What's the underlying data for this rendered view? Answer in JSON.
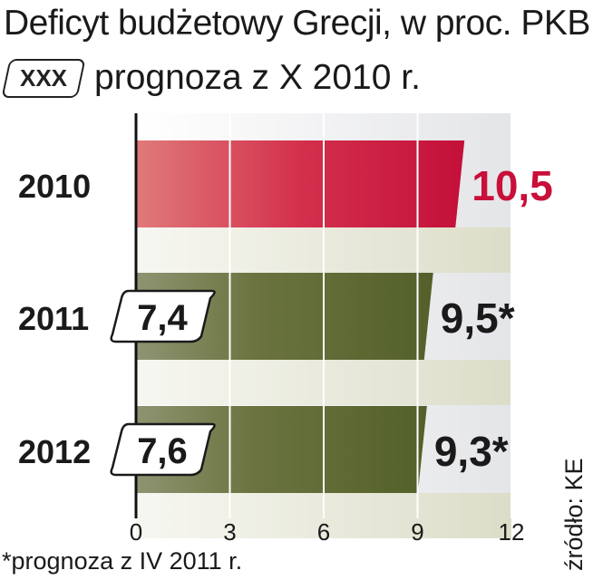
{
  "header": {
    "title": "Deficyt budżetowy Grecji, w proc. PKB",
    "legend_badge": "XXX",
    "legend_text": "prognoza z X 2010 r."
  },
  "footer": {
    "footnote": "*prognoza z IV 2011 r.",
    "source": "źródło: KE"
  },
  "colors": {
    "actual": "#c81e3c",
    "forecast": "#5a6a2a",
    "label_actual": "#c8103a",
    "label_forecast": "#1a1a1a"
  },
  "chart_data": {
    "type": "bar",
    "orientation": "horizontal",
    "title": "Deficyt budżetowy Grecji, w proc. PKB",
    "categories": [
      "2010",
      "2011",
      "2012"
    ],
    "values": [
      10.5,
      9.5,
      9.3
    ],
    "value_labels": [
      "10,5",
      "9,5*",
      "9,3*"
    ],
    "forecast_values": [
      null,
      7.4,
      7.6
    ],
    "forecast_labels": [
      null,
      "7,4",
      "7,6"
    ],
    "xlim": [
      0,
      12
    ],
    "xticks": [
      0,
      3,
      6,
      9,
      12
    ],
    "xtick_labels": [
      "0",
      "3",
      "6",
      "9",
      "12"
    ],
    "grid": true
  }
}
